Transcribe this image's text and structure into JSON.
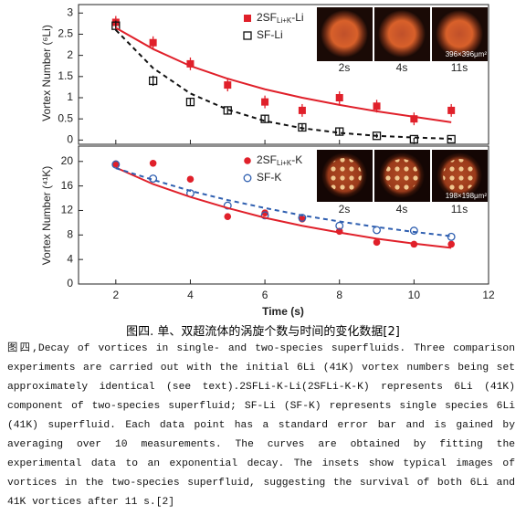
{
  "chart_data": [
    {
      "type": "scatter",
      "ylabel": "Vortex Number (⁶Li)",
      "xlim": [
        1,
        12
      ],
      "xticks": [
        2,
        4,
        6,
        8,
        10,
        12
      ],
      "ylim": [
        -0.1,
        3.2
      ],
      "yticks": [
        0,
        0.5,
        1,
        1.5,
        2,
        2.5,
        3
      ],
      "x": [
        2,
        3,
        4,
        5,
        6,
        7,
        8,
        9,
        10,
        11
      ],
      "series": [
        {
          "name": "2SFLi+K-Li",
          "marker": "square",
          "color": "#e0202a",
          "values": [
            2.78,
            2.3,
            1.8,
            1.3,
            0.9,
            0.7,
            1.0,
            0.8,
            0.5,
            0.7
          ],
          "errors": [
            0.15,
            0.15,
            0.15,
            0.15,
            0.15,
            0.15,
            0.15,
            0.15,
            0.15,
            0.15
          ]
        },
        {
          "name": "SF-Li",
          "marker": "square-open",
          "color": "#111111",
          "values": [
            2.7,
            1.4,
            0.9,
            0.7,
            0.5,
            0.3,
            0.2,
            0.1,
            0.02,
            0.02
          ],
          "errors": [
            0.12,
            0.12,
            0.08,
            0.08,
            0.08,
            0.08,
            0.08,
            0.05,
            0.03,
            0.03
          ]
        },
        {
          "kind": "fit",
          "dashed": false,
          "color": "#e0202a",
          "values": [
            2.65,
            2.15,
            1.75,
            1.45,
            1.2,
            1.0,
            0.83,
            0.68,
            0.55,
            0.42
          ]
        },
        {
          "kind": "fit",
          "dashed": true,
          "color": "#111111",
          "values": [
            2.6,
            1.7,
            1.1,
            0.72,
            0.45,
            0.28,
            0.17,
            0.1,
            0.06,
            0.03
          ]
        }
      ],
      "insets": {
        "labels": [
          "2s",
          "4s",
          "11s"
        ],
        "scale": "396×396μm²"
      }
    },
    {
      "type": "scatter",
      "ylabel": "Vortex Number (⁴¹K)",
      "xlabel": "Time (s)",
      "xlim": [
        1,
        12
      ],
      "xticks": [
        2,
        4,
        6,
        8,
        10,
        12
      ],
      "ylim": [
        0,
        22.5
      ],
      "yticks": [
        0,
        4,
        8,
        12,
        16,
        20
      ],
      "x": [
        2,
        3,
        4,
        5,
        6,
        7,
        8,
        9,
        10,
        11
      ],
      "series": [
        {
          "name": "2SFLi+K-K",
          "marker": "circle",
          "color": "#e0202a",
          "values": [
            19.6,
            19.7,
            17.1,
            11.0,
            11.6,
            10.6,
            8.6,
            6.8,
            6.5,
            6.5
          ]
        },
        {
          "name": "SF-K",
          "marker": "circle-open",
          "color": "#2f5fb0",
          "values": [
            19.5,
            17.2,
            14.8,
            12.8,
            11.2,
            10.8,
            9.5,
            8.8,
            8.7,
            7.7
          ]
        },
        {
          "kind": "fit",
          "dashed": false,
          "color": "#e0202a",
          "values": [
            19,
            16.3,
            14.2,
            12.4,
            10.8,
            9.5,
            8.4,
            7.4,
            6.6,
            5.9
          ]
        },
        {
          "kind": "fit",
          "dashed": true,
          "color": "#2f5fb0",
          "values": [
            18.9,
            17.0,
            15.2,
            13.7,
            12.4,
            11.2,
            10.2,
            9.3,
            8.5,
            7.8
          ]
        }
      ],
      "insets": {
        "labels": [
          "2s",
          "4s",
          "11s"
        ],
        "scale": "198×198μm²"
      }
    }
  ],
  "caption": "图四. 单、双超流体的涡旋个数与时间的变化数据[2]",
  "paragraph": "图四,Decay of vortices in single- and two-species superfluids. Three comparison experiments are carried out with the initial  6Li  (41K) vortex numbers being set approximately identical (see text).2SFLi-K-Li(2SFLi-K-K) represents 6Li (41K) component of two-species superfluid; SF-Li (SF-K) represents single species 6Li (41K) superfluid. Each data point has a standard error bar and is gained by averaging over 10 measurements. The curves are obtained by fitting the experimental data to an exponential decay. The insets show typical images of vortices in the two-species superfluid, suggesting the survival of both 6Li and 41K vortices after 11 s.[2]"
}
